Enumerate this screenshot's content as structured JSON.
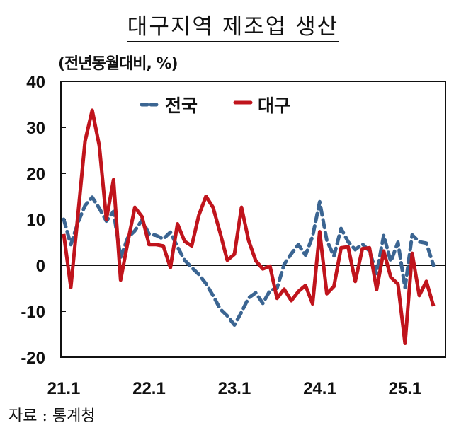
{
  "title": "대구지역 제조업 생산",
  "unit_label": "(전년동월대비, %)",
  "source": "자료 : 통계청",
  "colors": {
    "national": "#3b6592",
    "daegu": "#c0141c",
    "axis": "#111111"
  },
  "chart_data": {
    "type": "line",
    "title": "대구지역 제조업 생산",
    "ylabel": "(전년동월대비, %)",
    "xlabel": "",
    "ylim": [
      -20,
      40
    ],
    "yticks": [
      40,
      30,
      20,
      10,
      0,
      -10,
      -20
    ],
    "xtick_labels": [
      "21.1",
      "22.1",
      "23.1",
      "24.1",
      "25.1"
    ],
    "xtick_index": [
      0,
      12,
      24,
      36,
      48
    ],
    "grid": false,
    "legend_position": "top-inside",
    "x": [
      "21.1",
      "21.2",
      "21.3",
      "21.4",
      "21.5",
      "21.6",
      "21.7",
      "21.8",
      "21.9",
      "21.10",
      "21.11",
      "21.12",
      "22.1",
      "22.2",
      "22.3",
      "22.4",
      "22.5",
      "22.6",
      "22.7",
      "22.8",
      "22.9",
      "22.10",
      "22.11",
      "22.12",
      "23.1",
      "23.2",
      "23.3",
      "23.4",
      "23.5",
      "23.6",
      "23.7",
      "23.8",
      "23.9",
      "23.10",
      "23.11",
      "23.12",
      "24.1",
      "24.2",
      "24.3",
      "24.4",
      "24.5",
      "24.6",
      "24.7",
      "24.8",
      "24.9",
      "24.10",
      "24.11",
      "24.12",
      "25.1",
      "25.2",
      "25.3",
      "25.4",
      "25.5"
    ],
    "series": [
      {
        "name": "전국",
        "style": "dashed",
        "color": "#3b6592",
        "values": [
          10,
          4.5,
          9.3,
          13,
          14.8,
          12.4,
          9.6,
          11.7,
          1.7,
          6,
          7.5,
          9.8,
          6.8,
          6.5,
          5.7,
          7.2,
          4,
          1.1,
          -0.5,
          -2,
          -4,
          -6.6,
          -9.5,
          -11,
          -13,
          -10.2,
          -7.1,
          -6,
          -8.3,
          -5.5,
          -5,
          0.2,
          2.5,
          4.5,
          2.2,
          6.3,
          13.8,
          5.4,
          2,
          8,
          5.1,
          3.4,
          4.6,
          3.1,
          -1.8,
          6.5,
          0.8,
          5,
          -4.9,
          6.6,
          5.1,
          4.8,
          0
        ]
      },
      {
        "name": "대구",
        "style": "solid",
        "color": "#c0141c",
        "values": [
          6.8,
          -4.8,
          11,
          27,
          33.7,
          26,
          10,
          18.6,
          -3.2,
          5,
          12.6,
          10.6,
          4.5,
          4.5,
          4.2,
          -0.5,
          9,
          5.2,
          4.2,
          10.9,
          15,
          12.6,
          7,
          1.1,
          2.4,
          12.6,
          5.4,
          1,
          -0.8,
          -0.2,
          -7.2,
          -5.2,
          -7.7,
          -5.7,
          -4.4,
          -8.4,
          7.3,
          -6.2,
          -4.6,
          3.8,
          4,
          -3.5,
          3.6,
          3.8,
          -5.3,
          3.1,
          -2.6,
          -4.1,
          -17,
          2.6,
          -6.6,
          -3.5,
          -8.9
        ]
      }
    ]
  },
  "legend": [
    {
      "label": "전국"
    },
    {
      "label": "대구"
    }
  ]
}
